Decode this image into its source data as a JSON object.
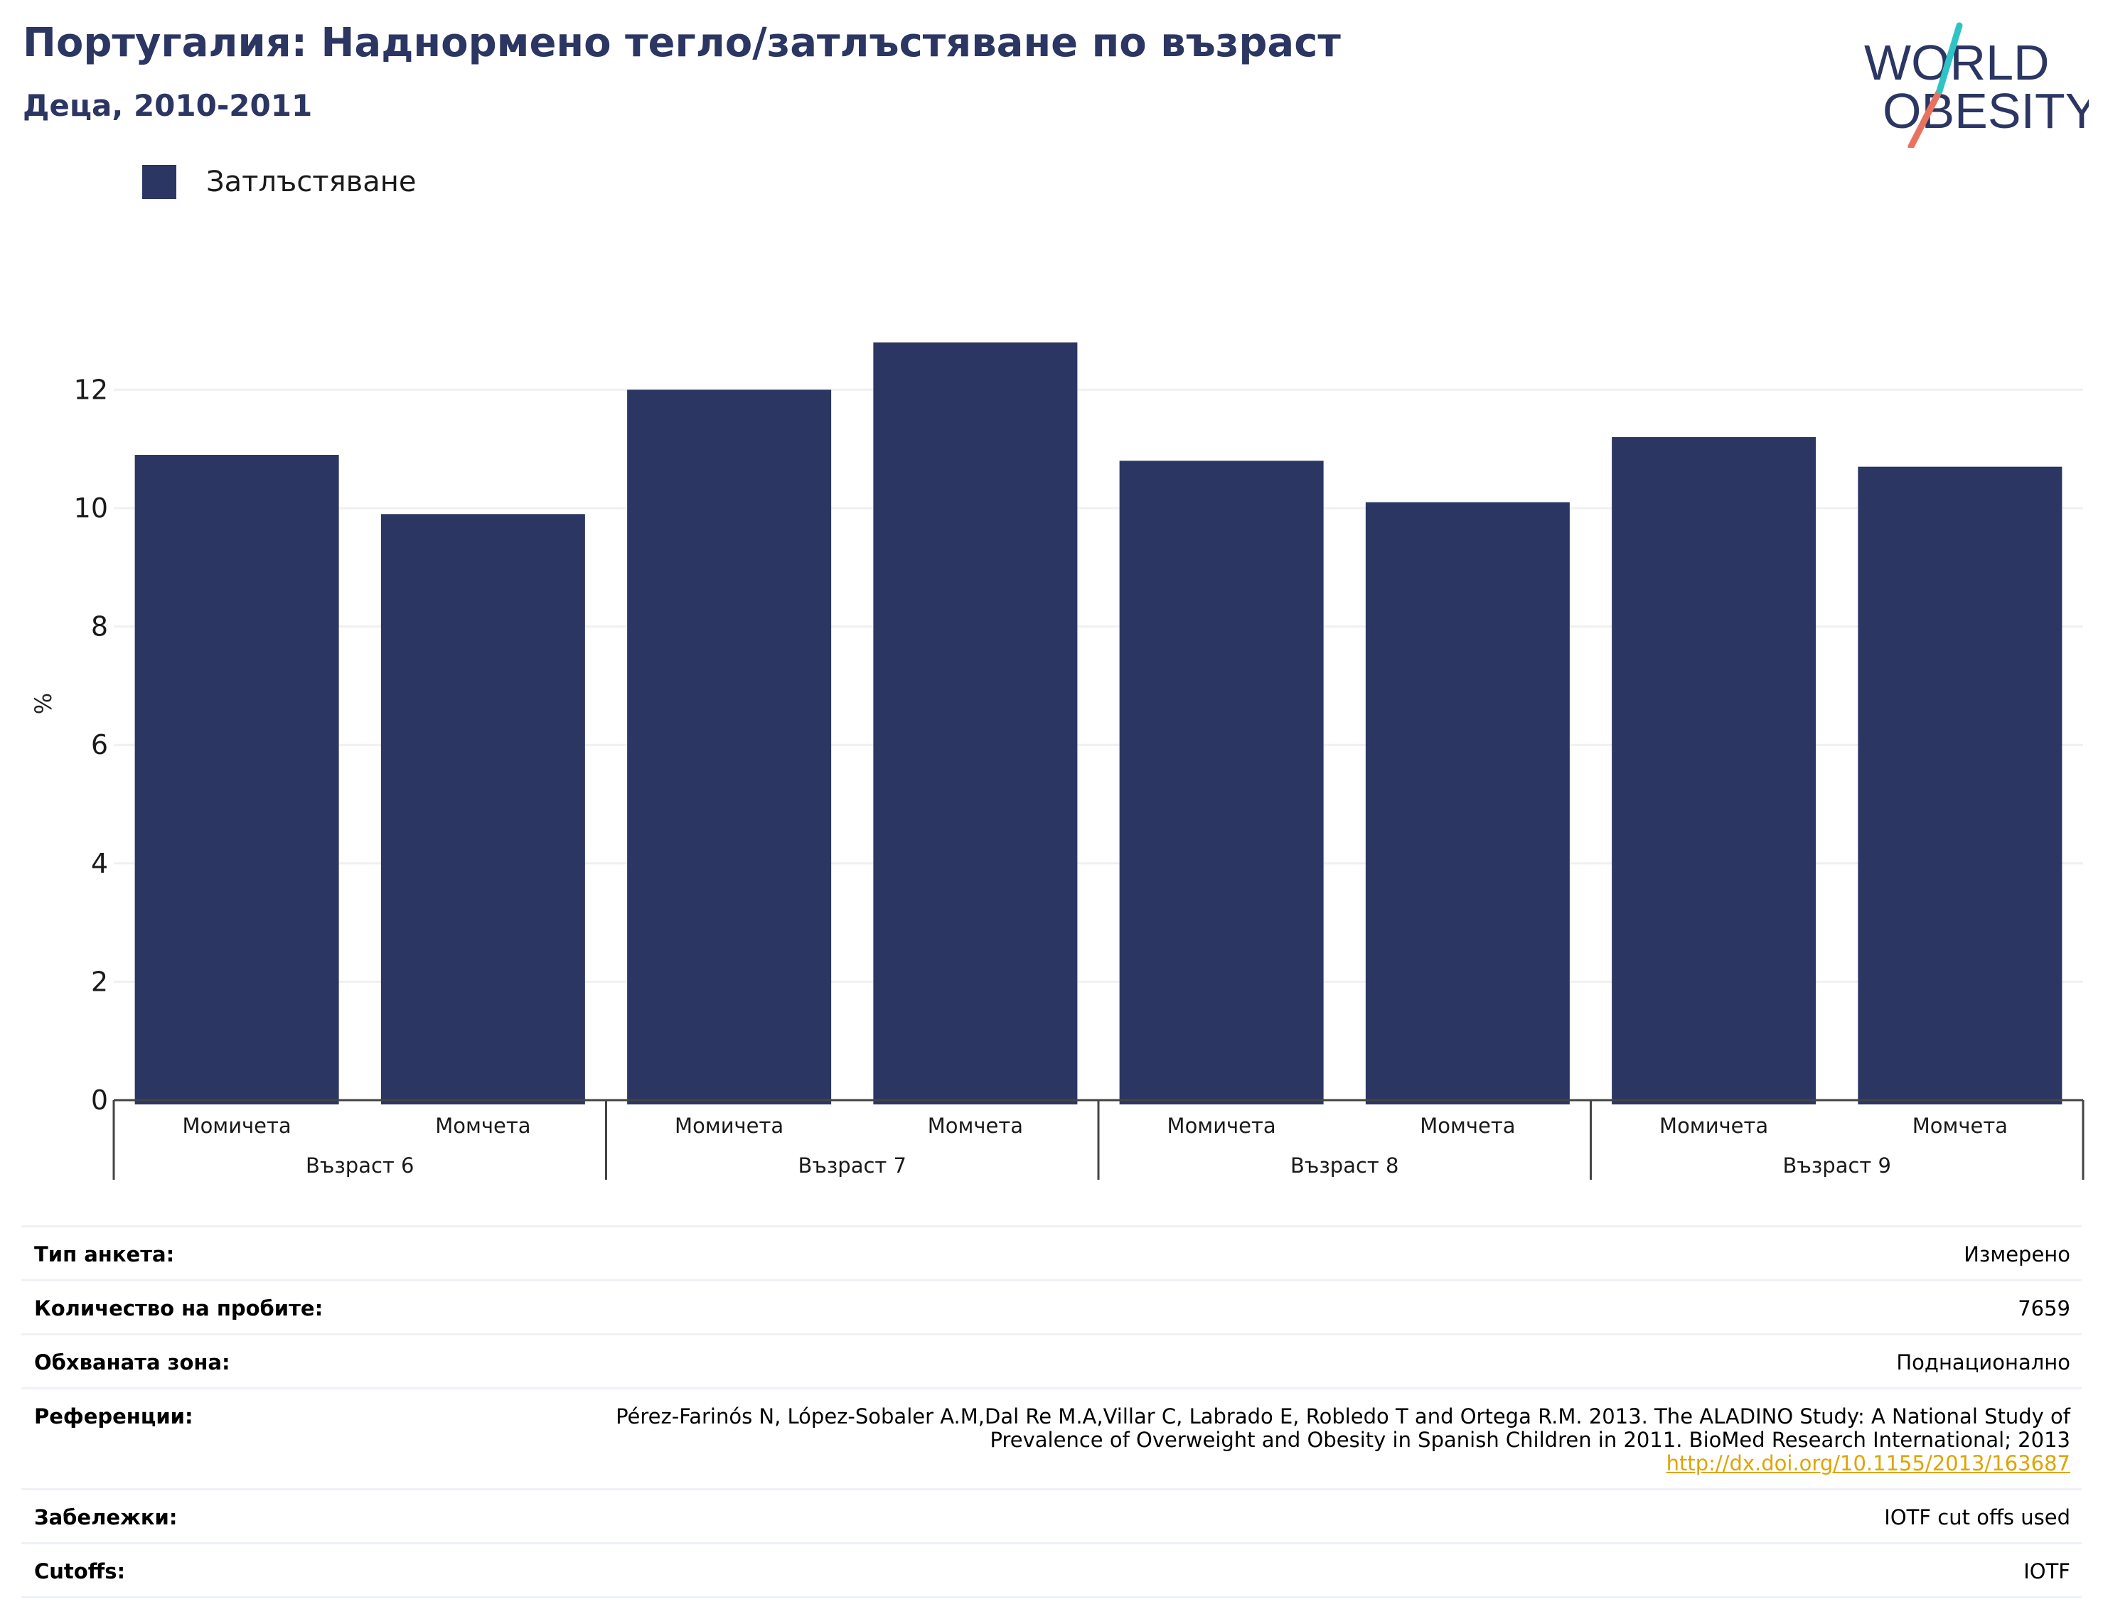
{
  "title": "Португалия: Наднормено тегло/затлъстяване по възраст",
  "subtitle": "Деца, 2010-2011",
  "logo": {
    "line1": "WORLD",
    "line2": "OBESITY"
  },
  "legend": [
    {
      "label": "Затлъстяване",
      "color": "#2b3663"
    }
  ],
  "chart_data": {
    "type": "bar",
    "title": "",
    "xlabel": "",
    "ylabel": "%",
    "ylim": [
      0,
      13.5
    ],
    "yticks": [
      0,
      2,
      4,
      6,
      8,
      10,
      12
    ],
    "grid": true,
    "legend_position": "top-left",
    "groups": [
      "Възраст 6",
      "Възраст 7",
      "Възраст 8",
      "Възраст 9"
    ],
    "categories": [
      "Момичета",
      "Момчета",
      "Момичета",
      "Момчета",
      "Момичета",
      "Момчета",
      "Момичета",
      "Момчета"
    ],
    "series": [
      {
        "name": "Затлъстяване",
        "color": "#2b3663",
        "values": [
          10.9,
          9.9,
          12.0,
          12.8,
          10.8,
          10.1,
          11.2,
          10.7
        ]
      }
    ]
  },
  "info": {
    "survey_type": {
      "label": "Тип анкета:",
      "value": "Измерено"
    },
    "sample_size": {
      "label": "Количество на пробите:",
      "value": "7659"
    },
    "area": {
      "label": "Обхваната зона:",
      "value": "Поднационално"
    },
    "references": {
      "label": "Референции:",
      "line1": "Pérez-Farinós N, López-Sobaler A.M,Dal Re M.A,Villar C, Labrado E, Robledo T and Ortega R.M. 2013. The ALADINO Study: A National Study of",
      "line2": "Prevalence of Overweight and Obesity in Spanish Children in 2011. BioMed Research International; 2013",
      "link": "http://dx.doi.org/10.1155/2013/163687"
    },
    "notes": {
      "label": "Забележки:",
      "value": "IOTF cut offs used"
    },
    "cutoffs": {
      "label": "Cutoffs:",
      "value": "IOTF"
    }
  }
}
